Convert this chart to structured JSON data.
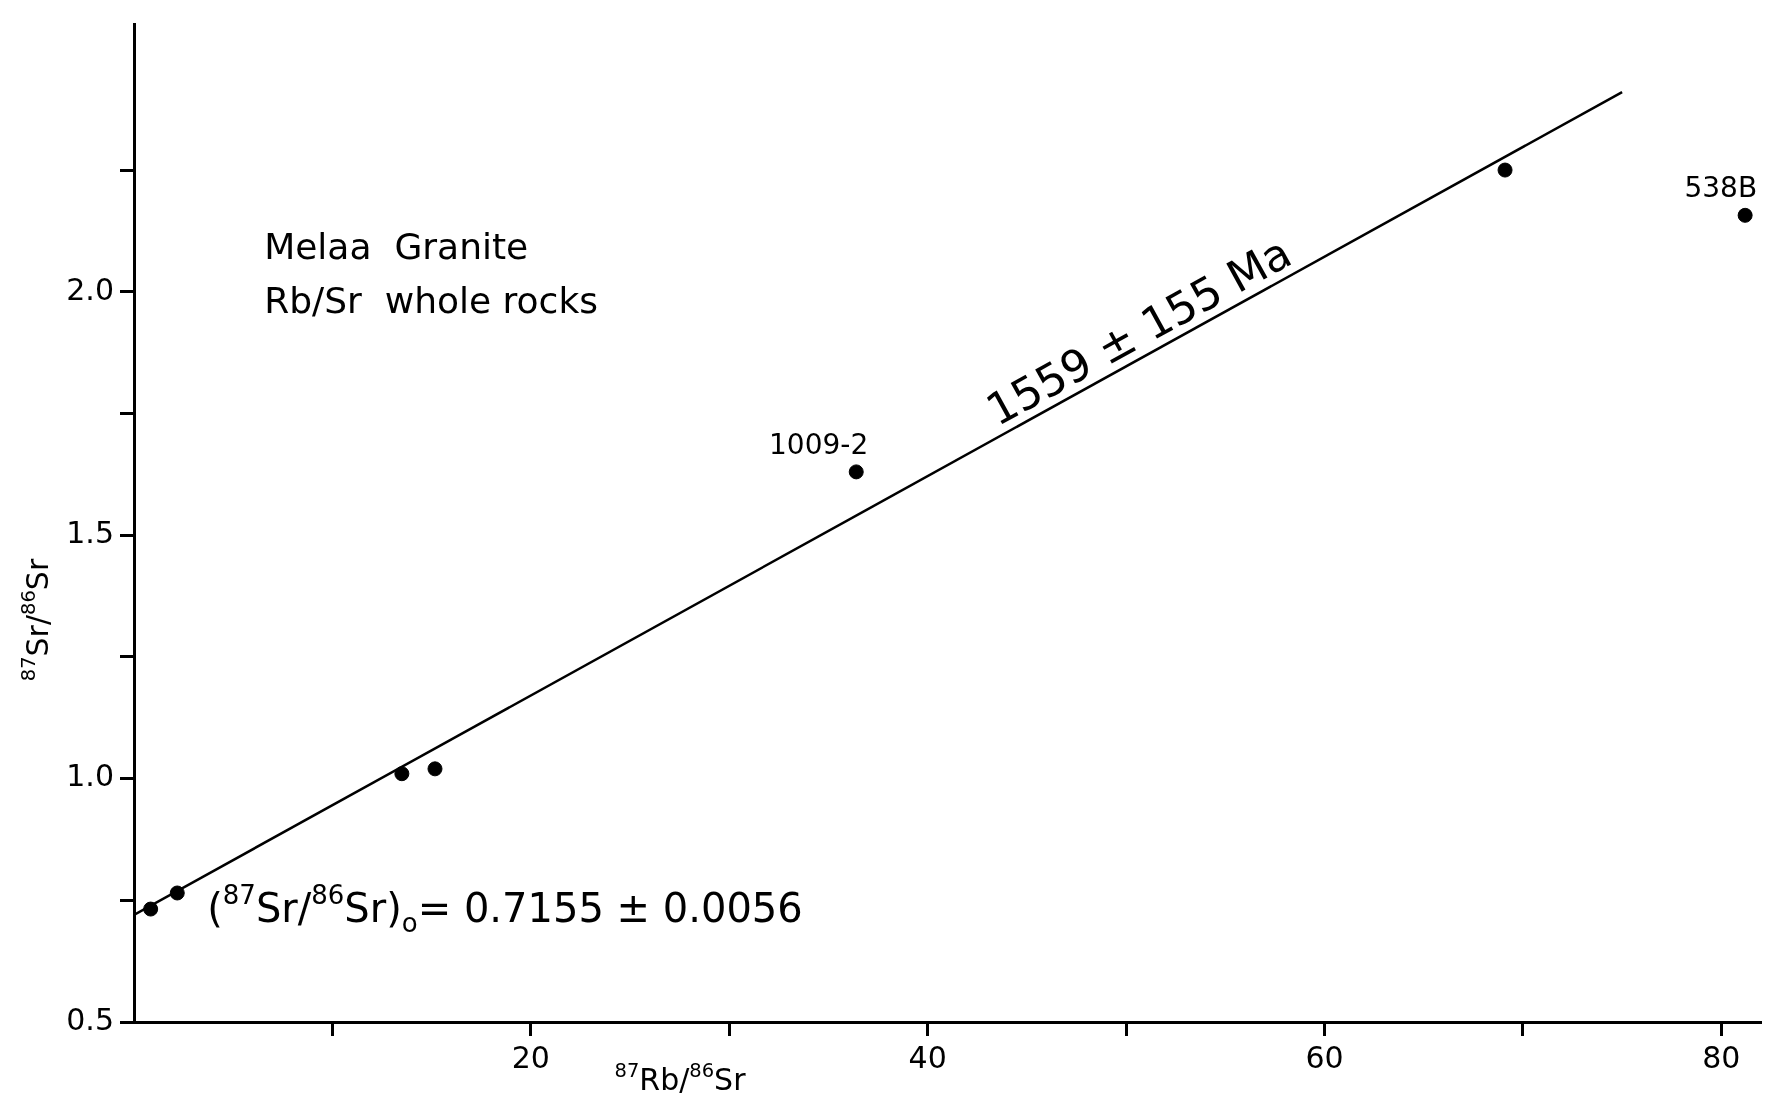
{
  "chart_data": {
    "type": "scatter",
    "xlabel": "$^{87}$Rb/$^{86}$Sr",
    "ylabel": "$^{87}$Sr/$^{86}$Sr",
    "xlim": [
      0,
      82
    ],
    "ylim": [
      0.5,
      2.55
    ],
    "xticks": [
      {
        "value": 10,
        "label": null
      },
      20,
      {
        "value": 30,
        "label": null
      },
      40,
      {
        "value": 50,
        "label": null
      },
      60,
      {
        "value": 70,
        "label": null
      },
      80
    ],
    "yticks": [
      0.5,
      {
        "value": 0.75,
        "label": null
      },
      {
        "value": 1,
        "label": "1.0"
      },
      {
        "value": 1.25,
        "label": null
      },
      1.5,
      {
        "value": 1.75,
        "label": null
      },
      {
        "value": 2,
        "label": "2.0"
      },
      {
        "value": 2.25,
        "label": null
      }
    ],
    "marker": "circle",
    "annotations": [
      "Melaa  Granite",
      "Rb/Sr  whole rocks",
      "($^{87}$Sr/$^{86}$Sr)$_{o}$= 0.7155 ± 0.0056",
      {
        "text": "1009-2",
        "x": 36.4,
        "y": 1.63
      },
      {
        "text": "538B",
        "x": 81.2,
        "y": 2.157
      },
      {
        "text": "1559 ± 155 Ma",
        "x": 51.3,
        "y": 1.87
      }
    ],
    "series": [
      {
        "type": "scatter",
        "color": "#000000",
        "x": [
          0.84,
          2.18,
          13.5,
          15.17,
          36.4,
          69.1,
          81.2
        ],
        "values": [
          0.732,
          0.765,
          1.01,
          1.02,
          1.63,
          2.25,
          2.157
        ]
      },
      {
        "type": "line",
        "color": "#000000",
        "marker": "none",
        "x": [
          0,
          75
        ],
        "values": [
          0.72,
          2.41
        ]
      }
    ]
  }
}
